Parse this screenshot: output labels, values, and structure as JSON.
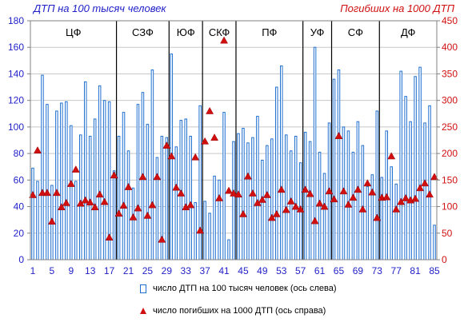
{
  "chart_data": {
    "type": "bar",
    "title_left": "ДТП на 100 тысяч человек",
    "title_right": "Погибших на 1000 ДТП",
    "x": [
      1,
      2,
      3,
      4,
      5,
      6,
      7,
      8,
      9,
      10,
      11,
      12,
      13,
      14,
      15,
      16,
      17,
      18,
      19,
      20,
      21,
      22,
      23,
      24,
      25,
      26,
      27,
      28,
      29,
      30,
      31,
      32,
      33,
      34,
      35,
      36,
      37,
      38,
      39,
      40,
      41,
      42,
      43,
      44,
      45,
      46,
      47,
      48,
      49,
      50,
      51,
      52,
      53,
      54,
      55,
      56,
      57,
      58,
      59,
      60,
      61,
      62,
      63,
      64,
      65,
      66,
      67,
      68,
      69,
      70,
      71,
      72,
      73,
      74,
      75,
      76,
      77,
      78,
      79,
      80,
      81,
      82,
      83,
      84,
      85
    ],
    "x_tick_labels": [
      "1",
      "5",
      "9",
      "13",
      "17",
      "21",
      "25",
      "29",
      "33",
      "37",
      "41",
      "45",
      "49",
      "53",
      "57",
      "61",
      "65",
      "69",
      "73",
      "77",
      "81",
      "85"
    ],
    "y_left": {
      "ylim": [
        0,
        180
      ],
      "ticks": [
        0,
        20,
        40,
        60,
        80,
        100,
        120,
        140,
        160,
        180
      ]
    },
    "y_right": {
      "ylim": [
        0,
        450
      ],
      "ticks": [
        0,
        50,
        100,
        150,
        200,
        250,
        300,
        350,
        400,
        450
      ]
    },
    "regions": [
      {
        "label": "ЦФ",
        "start": 1,
        "end": 18
      },
      {
        "label": "СЗФ",
        "start": 19,
        "end": 29
      },
      {
        "label": "ЮФ",
        "start": 30,
        "end": 36
      },
      {
        "label": "СКФ",
        "start": 37,
        "end": 43
      },
      {
        "label": "ПФ",
        "start": 44,
        "end": 57
      },
      {
        "label": "УФ",
        "start": 58,
        "end": 63
      },
      {
        "label": "СФ",
        "start": 64,
        "end": 73
      },
      {
        "label": "ДФ",
        "start": 74,
        "end": 85
      }
    ],
    "series": [
      {
        "name": "число ДТП на 100 тысяч человек (ось слева)",
        "axis": "left",
        "kind": "bar",
        "values": [
          69,
          59,
          139,
          117,
          56,
          112,
          118,
          119,
          101,
          59,
          94,
          134,
          93,
          106,
          131,
          120,
          119,
          67,
          93,
          111,
          82,
          54,
          117,
          126,
          102,
          143,
          77,
          93,
          92,
          155,
          85,
          105,
          106,
          93,
          43,
          116,
          44,
          35,
          63,
          60,
          111,
          15,
          89,
          95,
          99,
          88,
          92,
          108,
          75,
          86,
          91,
          130,
          146,
          94,
          82,
          93,
          73,
          96,
          89,
          160,
          81,
          65,
          103,
          136,
          143,
          100,
          97,
          81,
          104,
          86,
          55,
          64,
          112,
          62,
          97,
          70,
          57,
          142,
          123,
          104,
          138,
          145,
          103,
          116,
          26
        ]
      },
      {
        "name": "число погибших на 1000 ДТП (ось справа)",
        "axis": "right",
        "kind": "marker",
        "values": [
          122,
          206,
          126,
          126,
          72,
          126,
          99,
          107,
          143,
          170,
          106,
          112,
          108,
          99,
          123,
          109,
          42,
          159,
          87,
          102,
          137,
          80,
          97,
          156,
          83,
          103,
          156,
          38,
          215,
          195,
          136,
          125,
          99,
          103,
          193,
          55,
          223,
          280,
          230,
          116,
          413,
          130,
          125,
          123,
          86,
          157,
          125,
          107,
          113,
          122,
          79,
          86,
          132,
          94,
          110,
          100,
          95,
          132,
          124,
          73,
          106,
          100,
          129,
          114,
          233,
          129,
          104,
          117,
          132,
          95,
          144,
          127,
          79,
          117,
          118,
          195,
          95,
          109,
          116,
          112,
          115,
          135,
          144,
          123,
          156
        ]
      }
    ]
  }
}
